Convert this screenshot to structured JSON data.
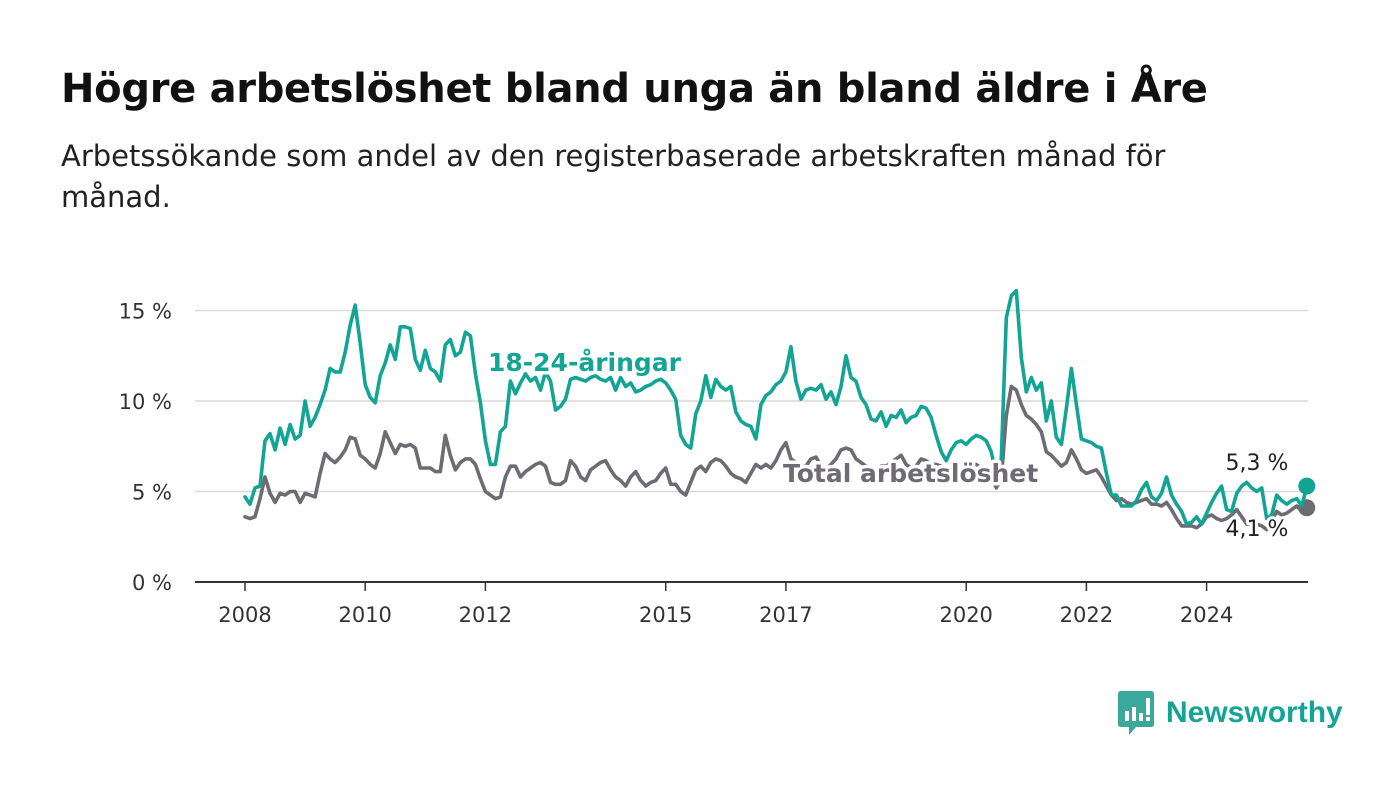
{
  "title": "Högre arbetslöshet bland unga än bland äldre i Åre",
  "subtitle": "Arbetssökande som andel av den registerbaserade arbetskraften månad för månad.",
  "brand": {
    "name": "Newsworthy",
    "icon": "newsworthy-logo-icon",
    "color": "#12a594"
  },
  "chart_data": {
    "type": "line",
    "x_start": "2008-01",
    "x_ticks": [
      "2008",
      "2010",
      "2012",
      "2015",
      "2017",
      "2020",
      "2022",
      "2024"
    ],
    "ylim": [
      0,
      15
    ],
    "y_ticks": [
      0,
      5,
      10,
      15
    ],
    "y_tick_labels": [
      "0 %",
      "5 %",
      "10 %",
      "15 %"
    ],
    "grid": "horizontal",
    "series": [
      {
        "name": "18-24-åringar",
        "color": "#12a594",
        "end_label": "5,3 %",
        "values": [
          4.7,
          4.3,
          5.2,
          5.3,
          7.8,
          8.2,
          7.3,
          8.5,
          7.6,
          8.7,
          7.9,
          8.1,
          10.0,
          8.6,
          9.1,
          9.8,
          10.6,
          11.8,
          11.6,
          11.6,
          12.7,
          14.2,
          15.3,
          13.2,
          10.9,
          10.2,
          9.9,
          11.4,
          12.1,
          13.1,
          12.3,
          14.1,
          14.1,
          14.0,
          12.3,
          11.7,
          12.8,
          11.8,
          11.6,
          11.1,
          13.1,
          13.4,
          12.5,
          12.7,
          13.8,
          13.6,
          11.5,
          9.9,
          7.8,
          6.5,
          6.5,
          8.3,
          8.6,
          11.1,
          10.4,
          11.0,
          11.5,
          11.1,
          11.3,
          10.6,
          11.6,
          11.1,
          9.5,
          9.7,
          10.1,
          11.2,
          11.3,
          11.2,
          11.1,
          11.3,
          11.4,
          11.2,
          11.1,
          11.3,
          10.6,
          11.3,
          10.8,
          11.0,
          10.5,
          10.6,
          10.8,
          10.9,
          11.1,
          11.2,
          11.0,
          10.6,
          10.1,
          8.1,
          7.6,
          7.4,
          9.3,
          10.0,
          11.4,
          10.2,
          11.2,
          10.8,
          10.6,
          10.8,
          9.4,
          8.9,
          8.7,
          8.6,
          7.9,
          9.8,
          10.3,
          10.5,
          10.9,
          11.1,
          11.6,
          13.0,
          11.1,
          10.1,
          10.6,
          10.7,
          10.6,
          10.9,
          10.1,
          10.5,
          9.8,
          10.8,
          12.5,
          11.3,
          11.1,
          10.2,
          9.8,
          9.0,
          8.9,
          9.4,
          8.6,
          9.2,
          9.1,
          9.5,
          8.8,
          9.1,
          9.2,
          9.7,
          9.6,
          9.1,
          8.1,
          7.2,
          6.7,
          7.3,
          7.7,
          7.8,
          7.6,
          7.9,
          8.1,
          8.0,
          7.8,
          7.2,
          5.9,
          6.8,
          14.6,
          15.8,
          16.1,
          12.4,
          10.5,
          11.3,
          10.6,
          11.0,
          8.9,
          10.0,
          8.0,
          7.6,
          9.6,
          11.8,
          9.8,
          7.9,
          7.8,
          7.7,
          7.5,
          7.4,
          6.0,
          4.8,
          4.8,
          4.2,
          4.2,
          4.2,
          4.5,
          5.1,
          5.5,
          4.7,
          4.5,
          4.9,
          5.8,
          4.8,
          4.3,
          3.9,
          3.2,
          3.3,
          3.6,
          3.2,
          3.8,
          4.4,
          4.9,
          5.3,
          4.0,
          3.9,
          4.9,
          5.3,
          5.5,
          5.2,
          5.0,
          5.2,
          3.5,
          3.7,
          4.8,
          4.5,
          4.3,
          4.5,
          4.6,
          4.2,
          5.3
        ]
      },
      {
        "name": "Total arbetslöshet",
        "color": "#6e6b73",
        "end_label": "4,1 %",
        "values": [
          3.6,
          3.5,
          3.6,
          4.6,
          5.8,
          4.9,
          4.4,
          4.9,
          4.8,
          5.0,
          5.0,
          4.4,
          4.9,
          4.8,
          4.7,
          6.0,
          7.1,
          6.8,
          6.6,
          6.9,
          7.3,
          8.0,
          7.9,
          7.0,
          6.8,
          6.5,
          6.3,
          7.1,
          8.3,
          7.7,
          7.1,
          7.6,
          7.5,
          7.6,
          7.4,
          6.3,
          6.3,
          6.3,
          6.1,
          6.1,
          8.1,
          7.0,
          6.2,
          6.6,
          6.8,
          6.8,
          6.5,
          5.7,
          5.0,
          4.8,
          4.6,
          4.7,
          5.8,
          6.4,
          6.4,
          5.8,
          6.1,
          6.3,
          6.5,
          6.6,
          6.4,
          5.5,
          5.4,
          5.4,
          5.6,
          6.7,
          6.4,
          5.8,
          5.6,
          6.2,
          6.4,
          6.6,
          6.7,
          6.2,
          5.8,
          5.6,
          5.3,
          5.8,
          6.1,
          5.6,
          5.3,
          5.5,
          5.6,
          6.0,
          6.3,
          5.4,
          5.4,
          5.0,
          4.8,
          5.5,
          6.2,
          6.4,
          6.1,
          6.6,
          6.8,
          6.7,
          6.4,
          6.0,
          5.8,
          5.7,
          5.5,
          6.0,
          6.5,
          6.3,
          6.5,
          6.3,
          6.7,
          7.3,
          7.7,
          6.8,
          6.6,
          6.4,
          6.4,
          6.8,
          6.9,
          6.4,
          6.2,
          6.5,
          6.8,
          7.3,
          7.4,
          7.3,
          6.8,
          6.6,
          6.4,
          6.3,
          6.2,
          6.4,
          6.4,
          6.6,
          6.8,
          7.0,
          6.5,
          6.3,
          6.4,
          6.8,
          6.7,
          6.5,
          6.5,
          6.4,
          6.1,
          6.2,
          6.4,
          6.5,
          6.6,
          6.5,
          6.5,
          6.3,
          6.2,
          5.8,
          5.2,
          5.7,
          9.2,
          10.8,
          10.6,
          9.8,
          9.2,
          9.0,
          8.7,
          8.3,
          7.2,
          7.0,
          6.7,
          6.4,
          6.6,
          7.3,
          6.8,
          6.2,
          6.0,
          6.1,
          6.2,
          5.8,
          5.3,
          4.8,
          4.5,
          4.6,
          4.4,
          4.3,
          4.4,
          4.5,
          4.6,
          4.3,
          4.3,
          4.2,
          4.4,
          4.0,
          3.5,
          3.1,
          3.1,
          3.1,
          3.0,
          3.2,
          3.6,
          3.7,
          3.5,
          3.4,
          3.5,
          3.7,
          4.0,
          3.6,
          3.2,
          3.2,
          3.2,
          3.1,
          2.9,
          3.4,
          3.9,
          3.7,
          3.8,
          4.0,
          4.2,
          3.9,
          4.1
        ]
      }
    ]
  }
}
